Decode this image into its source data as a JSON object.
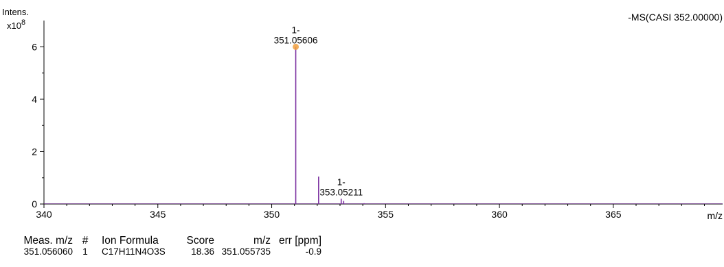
{
  "header": {
    "intensity_label": "Intens.",
    "scale_base": "x10",
    "scale_exponent": "8",
    "trace_label": "-MS(CASI 352.00000)"
  },
  "chart_data": {
    "type": "line",
    "title": "",
    "xlabel": "m/z",
    "ylabel": "Intens.",
    "y_scale_note": "x10^8",
    "xlim": [
      340,
      369.8
    ],
    "ylim": [
      0,
      6.9
    ],
    "x_ticks": [
      340,
      345,
      350,
      355,
      360,
      365
    ],
    "x_tick_labels": [
      "340",
      "345",
      "350",
      "355",
      "360",
      "365"
    ],
    "y_ticks": [
      0,
      2,
      4,
      6
    ],
    "y_tick_labels": [
      "0",
      "2",
      "4",
      "6"
    ],
    "series": [
      {
        "color": "#7b2fa0",
        "peaks": [
          {
            "x": 351.056,
            "y": 6.0
          },
          {
            "x": 352.06,
            "y": 1.05
          },
          {
            "x": 353.052,
            "y": 0.2
          },
          {
            "x": 353.16,
            "y": 0.12
          },
          {
            "x": 354.06,
            "y": 0.03
          }
        ]
      }
    ],
    "annotations": [
      {
        "x": 351.05606,
        "y": 6.0,
        "charge": "1-",
        "label": "351.05606"
      },
      {
        "x": 353.05211,
        "y": 0.2,
        "charge": "1-",
        "label": "353.05211"
      }
    ],
    "highlight_marker": {
      "x": 351.05606,
      "y": 6.0,
      "color": "#f0a040"
    },
    "grid": false
  },
  "results_table": {
    "headers": [
      "Meas. m/z",
      "#",
      "Ion Formula",
      "Score",
      "m/z",
      "err [ppm]"
    ],
    "rows": [
      [
        "351.056060",
        "1",
        "C17H11N4O3S",
        "18.36",
        "351.055735",
        "-0.9"
      ]
    ]
  }
}
